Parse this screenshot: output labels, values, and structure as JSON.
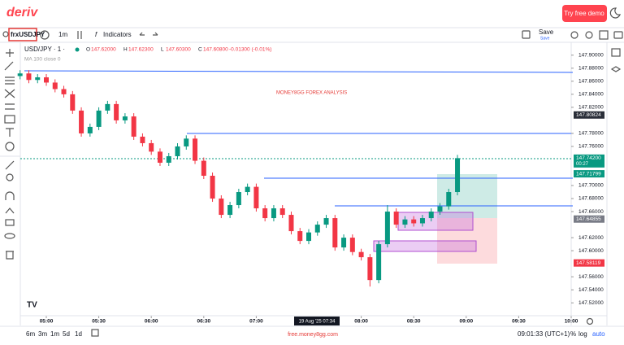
{
  "header": {
    "logo": "deriv",
    "demo_button": "Try free demo"
  },
  "toolbar": {
    "symbol": "frxUSDJPY",
    "interval": "1m",
    "indicators": "Indicators",
    "save": "Save",
    "save_sub": "Save"
  },
  "legend": {
    "symbol": "USD/JPY · 1 ·",
    "open_label": "O",
    "open": "147.62000",
    "high_label": "H",
    "high": "147.62300",
    "low_label": "L",
    "low": "147.60300",
    "close_label": "C",
    "close": "147.60800",
    "change": "-0.01300 (-0.01%)",
    "indicator": "MA 100 close 0"
  },
  "chart_data": {
    "type": "candlestick",
    "annotation": "MONEY8GG FOREX ANALYSIS",
    "up_color": "#089981",
    "down_color": "#f23645",
    "x": [
      "04:45",
      "04:50",
      "04:55",
      "05:00",
      "05:05",
      "05:10",
      "05:15",
      "05:20",
      "05:25",
      "05:30",
      "05:35",
      "05:40",
      "05:45",
      "05:50",
      "05:55",
      "06:00",
      "06:05",
      "06:10",
      "06:15",
      "06:20",
      "06:25",
      "06:30",
      "06:35",
      "06:40",
      "06:45",
      "06:50",
      "06:55",
      "07:00",
      "07:05",
      "07:10",
      "07:15",
      "07:20",
      "07:25",
      "07:30",
      "07:35",
      "07:40",
      "07:45",
      "07:50",
      "07:55",
      "08:00",
      "08:05",
      "08:10",
      "08:15",
      "08:20",
      "08:25",
      "08:30",
      "08:35",
      "08:40",
      "08:45",
      "08:50",
      "08:55"
    ],
    "open": [
      147.868,
      147.872,
      147.862,
      147.866,
      147.858,
      147.848,
      147.84,
      147.815,
      147.78,
      147.79,
      147.815,
      147.825,
      147.8,
      147.806,
      147.775,
      147.765,
      147.752,
      147.735,
      147.745,
      147.76,
      147.772,
      147.738,
      147.715,
      147.68,
      147.655,
      147.67,
      147.69,
      147.698,
      147.665,
      147.65,
      147.665,
      147.655,
      147.63,
      147.615,
      147.628,
      147.64,
      147.65,
      147.605,
      147.62,
      147.598,
      147.59,
      147.555,
      147.61,
      147.66,
      147.64,
      147.648,
      147.642,
      147.65,
      147.66,
      147.668,
      147.69
    ],
    "high": [
      147.877,
      147.877,
      147.871,
      147.871,
      147.863,
      147.853,
      147.845,
      147.82,
      147.795,
      147.82,
      147.83,
      147.83,
      147.811,
      147.811,
      147.78,
      147.77,
      147.757,
      147.75,
      147.765,
      147.777,
      147.777,
      147.743,
      147.72,
      147.685,
      147.675,
      147.695,
      147.703,
      147.703,
      147.67,
      147.67,
      147.67,
      147.66,
      147.635,
      147.633,
      147.645,
      147.655,
      147.655,
      147.625,
      147.625,
      147.603,
      147.595,
      147.615,
      147.67,
      147.665,
      147.653,
      147.653,
      147.655,
      147.665,
      147.673,
      147.695,
      147.747
    ],
    "low": [
      147.863,
      147.857,
      147.857,
      147.853,
      147.843,
      147.835,
      147.81,
      147.775,
      147.775,
      147.785,
      147.81,
      147.795,
      147.795,
      147.77,
      147.76,
      147.747,
      147.73,
      147.73,
      147.74,
      147.755,
      147.733,
      147.71,
      147.675,
      147.65,
      147.65,
      147.665,
      147.685,
      147.66,
      147.645,
      147.645,
      147.65,
      147.625,
      147.61,
      147.61,
      147.623,
      147.635,
      147.6,
      147.6,
      147.593,
      147.585,
      147.545,
      147.55,
      147.605,
      147.635,
      147.635,
      147.637,
      147.637,
      147.645,
      147.655,
      147.663,
      147.685
    ],
    "close": [
      147.872,
      147.862,
      147.866,
      147.858,
      147.848,
      147.84,
      147.815,
      147.78,
      147.79,
      147.815,
      147.825,
      147.8,
      147.806,
      147.775,
      147.765,
      147.752,
      147.735,
      147.745,
      147.76,
      147.772,
      147.738,
      147.715,
      147.68,
      147.655,
      147.67,
      147.69,
      147.698,
      147.665,
      147.65,
      147.665,
      147.655,
      147.63,
      147.615,
      147.628,
      147.64,
      147.65,
      147.605,
      147.62,
      147.598,
      147.59,
      147.555,
      147.61,
      147.66,
      147.64,
      147.648,
      147.642,
      147.65,
      147.66,
      147.668,
      147.69,
      147.742
    ],
    "xlim": [
      "04:45",
      "10:00"
    ],
    "xticks": [
      "05:00",
      "05:30",
      "06:00",
      "06:30",
      "07:00",
      "08:00",
      "08:30",
      "09:00",
      "09:30",
      "10:00"
    ],
    "ylim": [
      147.504,
      147.916
    ],
    "yticks": [
      {
        "value": 147.9,
        "label": "147.90000"
      },
      {
        "value": 147.88,
        "label": "147.88000"
      },
      {
        "value": 147.86,
        "label": "147.86000"
      },
      {
        "value": 147.84,
        "label": "147.84000"
      },
      {
        "value": 147.82,
        "label": "147.82000"
      },
      {
        "value": 147.78,
        "label": "147.78000"
      },
      {
        "value": 147.76,
        "label": "147.76000"
      },
      {
        "value": 147.7,
        "label": "147.70000"
      },
      {
        "value": 147.68,
        "label": "147.68000"
      },
      {
        "value": 147.66,
        "label": "147.66000"
      },
      {
        "value": 147.62,
        "label": "147.62000"
      },
      {
        "value": 147.6,
        "label": "147.60000"
      },
      {
        "value": 147.56,
        "label": "147.56000"
      },
      {
        "value": 147.54,
        "label": "147.54000"
      },
      {
        "value": 147.52,
        "label": "147.52000"
      }
    ],
    "price_badges": [
      {
        "price": 147.80824,
        "color": "#2a2e39"
      },
      {
        "price": {
          "value": 147.742,
          "label": "147.74200"
        },
        "sub": "00:27",
        "color": "#089981"
      },
      {
        "price": 147.71799,
        "color": "#089981"
      },
      {
        "price": 147.64855,
        "color": "#787b86"
      },
      {
        "price": 147.58119,
        "color": "#f23645"
      }
    ],
    "crosshair_time": "19 Aug '25 07:34"
  },
  "footer": {
    "ranges": [
      "6m",
      "3m",
      "1m",
      "5d",
      "1d"
    ],
    "watermark": "free.money8gg.com",
    "clock": "09:01:33 (UTC+1)",
    "percent": "%",
    "log": "log",
    "auto": "auto"
  }
}
